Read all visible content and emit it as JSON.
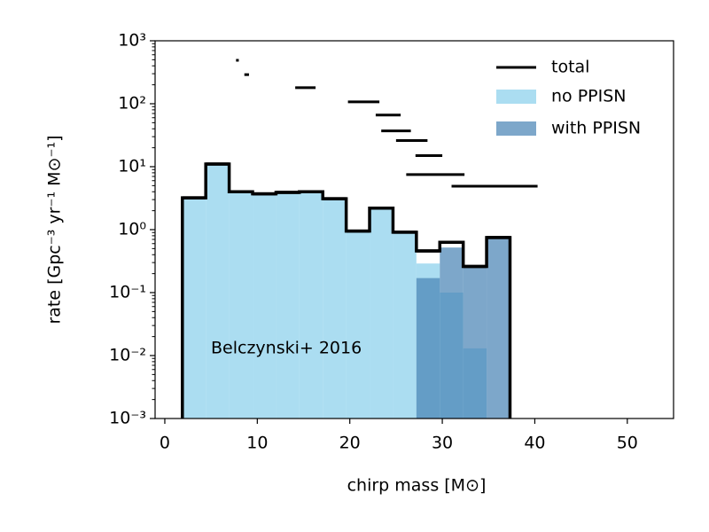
{
  "chart_data": {
    "type": "histogram",
    "xlabel": "chirp mass [M⊙]",
    "ylabel": "rate [Gpc⁻³ yr⁻¹ M⊙⁻¹]",
    "annotation": "Belczynski+ 2016",
    "bins": [
      1.9,
      4.43,
      6.96,
      9.49,
      12.02,
      14.55,
      17.08,
      19.61,
      22.14,
      24.67,
      27.2,
      29.73,
      32.26,
      34.79,
      37.32
    ],
    "series": [
      {
        "name": "no PPISN",
        "color": "#87ceeb",
        "alpha": 0.7,
        "values": [
          3.2,
          11,
          4.0,
          3.7,
          3.9,
          4.0,
          3.1,
          0.95,
          2.2,
          0.91,
          0.29,
          0.1,
          0.013,
          null
        ]
      },
      {
        "name": "with PPISN",
        "color": "#4682b4",
        "alpha": 0.7,
        "values": [
          null,
          null,
          null,
          null,
          null,
          null,
          null,
          null,
          null,
          null,
          0.17,
          0.52,
          0.26,
          0.75
        ]
      },
      {
        "name": "total",
        "color": "#000000",
        "style": "step",
        "values": [
          3.2,
          11,
          4.0,
          3.7,
          3.9,
          4.0,
          3.1,
          0.95,
          2.2,
          0.91,
          0.46,
          0.63,
          0.26,
          0.75
        ]
      }
    ],
    "segments": {
      "color": "#000000",
      "x0": [
        7.7,
        8.6,
        14.1,
        19.8,
        22.8,
        23.4,
        25.0,
        27.1,
        26.1,
        31.0
      ],
      "x1": [
        8.0,
        9.1,
        16.3,
        23.2,
        25.5,
        26.6,
        28.4,
        30.0,
        32.4,
        40.3
      ],
      "values": [
        490,
        290,
        180,
        107,
        66,
        37,
        26,
        15,
        7.5,
        4.9
      ]
    },
    "xlim": [
      -1.05,
      55
    ],
    "xticks": [
      0,
      10,
      20,
      30,
      40,
      50
    ],
    "ylim": [
      0.001,
      1000
    ],
    "yscale": "log",
    "yticks": [
      {
        "value": 0.001,
        "label": "10⁻³"
      },
      {
        "value": 0.01,
        "label": "10⁻²"
      },
      {
        "value": 0.1,
        "label": "10⁻¹"
      },
      {
        "value": 1,
        "label": "10⁰"
      },
      {
        "value": 10,
        "label": "10¹"
      },
      {
        "value": 100,
        "label": "10²"
      },
      {
        "value": 1000,
        "label": "10³"
      }
    ],
    "legend": "upper right"
  }
}
